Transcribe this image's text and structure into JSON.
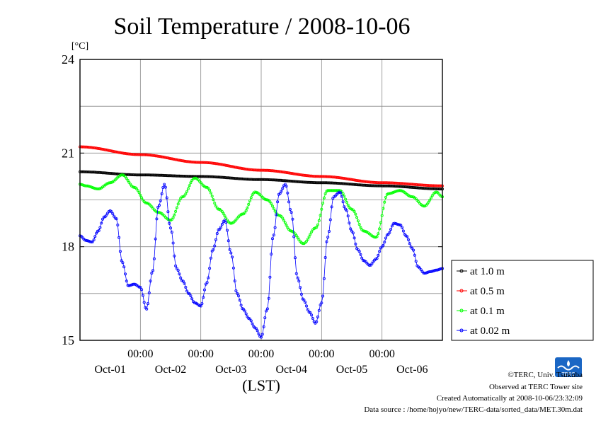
{
  "chart_data": {
    "type": "line",
    "title": "Soil Temperature / 2008-10-06",
    "xlabel": "(LST)",
    "ylabel": "[°C]",
    "ylim": [
      15,
      24
    ],
    "yticks": [
      "15",
      "18",
      "21",
      "24"
    ],
    "xlim_days": [
      0,
      6
    ],
    "x_time_ticks": [
      "00:00",
      "00:00",
      "00:00",
      "00:00",
      "00:00"
    ],
    "x_date_labels": [
      "Oct-01",
      "Oct-02",
      "Oct-03",
      "Oct-04",
      "Oct-05",
      "Oct-06"
    ],
    "grid": true,
    "legend_position": "right-bottom",
    "x_unit": "days from start of plotted period",
    "series": [
      {
        "name": "at 1.0 m",
        "color": "#000000",
        "x": [
          0,
          1,
          2,
          3,
          4,
          5,
          6
        ],
        "y": [
          20.4,
          20.3,
          20.25,
          20.15,
          20.05,
          19.95,
          19.85
        ]
      },
      {
        "name": "at 0.5 m",
        "color": "#ff0000",
        "x": [
          0,
          1,
          2,
          3,
          4,
          5,
          6
        ],
        "y": [
          21.2,
          20.95,
          20.7,
          20.45,
          20.25,
          20.05,
          19.95
        ]
      },
      {
        "name": "at 0.1 m",
        "color": "#00ff00",
        "x": [
          0,
          0.1,
          0.3,
          0.5,
          0.7,
          0.9,
          1.1,
          1.3,
          1.5,
          1.7,
          1.9,
          2.1,
          2.3,
          2.5,
          2.7,
          2.9,
          3.1,
          3.3,
          3.5,
          3.7,
          3.9,
          4.1,
          4.3,
          4.5,
          4.7,
          4.9,
          5.1,
          5.3,
          5.5,
          5.7,
          5.9,
          6.0
        ],
        "y": [
          20.0,
          19.95,
          19.85,
          20.05,
          20.3,
          19.9,
          19.4,
          19.1,
          18.85,
          19.6,
          20.2,
          19.9,
          19.2,
          18.75,
          19.05,
          19.75,
          19.5,
          19.0,
          18.5,
          18.1,
          18.6,
          19.8,
          19.8,
          19.2,
          18.5,
          18.3,
          19.7,
          19.8,
          19.6,
          19.3,
          19.75,
          19.6
        ]
      },
      {
        "name": "at 0.02 m",
        "color": "#0000ff",
        "x": [
          0,
          0.1,
          0.2,
          0.3,
          0.4,
          0.5,
          0.6,
          0.7,
          0.8,
          0.9,
          1.0,
          1.1,
          1.2,
          1.3,
          1.4,
          1.5,
          1.6,
          1.7,
          1.8,
          1.9,
          2.0,
          2.1,
          2.2,
          2.3,
          2.4,
          2.5,
          2.6,
          2.7,
          2.8,
          2.9,
          3.0,
          3.1,
          3.2,
          3.3,
          3.4,
          3.5,
          3.6,
          3.7,
          3.8,
          3.9,
          4.0,
          4.1,
          4.2,
          4.3,
          4.4,
          4.5,
          4.6,
          4.7,
          4.8,
          4.9,
          5.0,
          5.1,
          5.2,
          5.3,
          5.4,
          5.5,
          5.6,
          5.7,
          5.8,
          5.9,
          6.0
        ],
        "y": [
          18.35,
          18.2,
          18.15,
          18.5,
          18.95,
          19.15,
          18.9,
          17.5,
          16.75,
          16.8,
          16.7,
          16.0,
          17.2,
          19.3,
          20.0,
          18.6,
          17.3,
          16.9,
          16.5,
          16.2,
          16.1,
          16.85,
          17.9,
          18.55,
          18.85,
          17.8,
          16.5,
          16.0,
          15.7,
          15.4,
          15.1,
          16.0,
          18.35,
          19.7,
          20.0,
          19.1,
          17.0,
          16.3,
          15.9,
          15.55,
          16.2,
          18.3,
          19.6,
          19.75,
          19.2,
          18.5,
          17.9,
          17.55,
          17.4,
          17.6,
          18.0,
          18.4,
          18.75,
          18.7,
          18.35,
          17.95,
          17.35,
          17.15,
          17.2,
          17.25,
          17.3
        ]
      }
    ]
  },
  "credits": {
    "copyright": "©TERC, Univ. Tsukuba",
    "observed": "Observed at TERC Tower site",
    "created": "Created Automatically at 2008-10-06/23:32:09",
    "source": "Data source : /home/hojyo/new/TERC-data/sorted_data/MET.30m.dat",
    "logo_text": "TERC"
  }
}
